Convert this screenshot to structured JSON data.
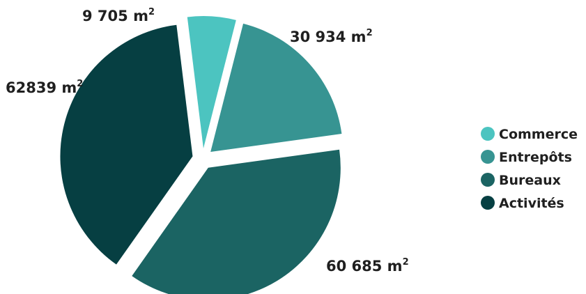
{
  "chart_data": {
    "type": "pie",
    "unit": "m²",
    "legend_position": "right",
    "slices": [
      {
        "name": "Commerce",
        "value": 9705,
        "label": "9 705 m",
        "color": "#4cc4c0"
      },
      {
        "name": "Entrepôts",
        "value": 30934,
        "label": "30 934 m",
        "color": "#379492"
      },
      {
        "name": "Bureaux",
        "value": 60685,
        "label": "60 685 m",
        "color": "#1b6463"
      },
      {
        "name": "Activités",
        "value": 62839,
        "label": "62839 m",
        "color": "#063f42"
      }
    ],
    "superscript": "2"
  }
}
